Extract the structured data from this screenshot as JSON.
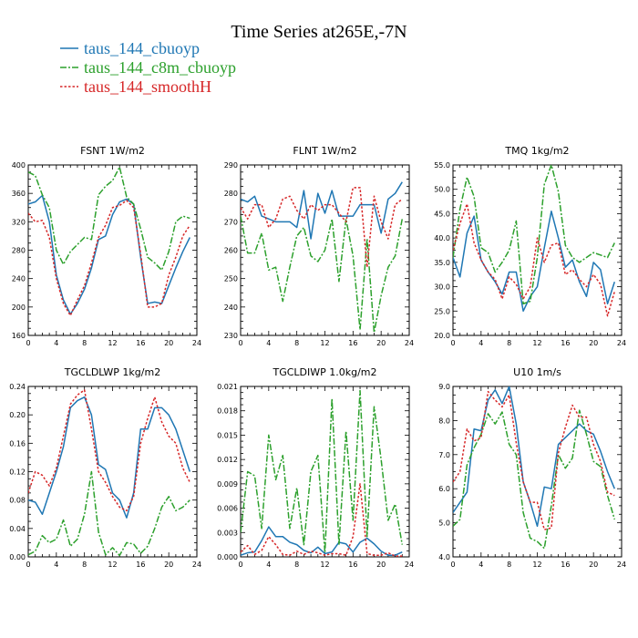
{
  "figure_title": "Time Series at265E,-7N",
  "legend": [
    {
      "label": "taus_144_cbuoyp",
      "color": "#1f77b4",
      "style": "solid"
    },
    {
      "label": "taus_144_c8m_cbuoyp",
      "color": "#2ca02c",
      "style": "dashdot"
    },
    {
      "label": "taus_144_smoothH",
      "color": "#d62728",
      "style": "dotted"
    }
  ],
  "chart_data": [
    {
      "type": "line",
      "title": "FSNT   1W/m2",
      "x": [
        0,
        1,
        2,
        3,
        4,
        5,
        6,
        7,
        8,
        9,
        10,
        11,
        12,
        13,
        14,
        15,
        16,
        17,
        18,
        19,
        20,
        21,
        22,
        23
      ],
      "xticks": [
        0,
        4,
        8,
        12,
        16,
        20,
        24
      ],
      "xlim": [
        0,
        24
      ],
      "ylim": [
        160,
        400
      ],
      "yticks": [
        160,
        200,
        240,
        280,
        320,
        360,
        400
      ],
      "yticklabels": [
        "160",
        "200",
        "240",
        "280",
        "320",
        "360",
        "400"
      ],
      "series": [
        {
          "name": "taus_144_cbuoyp",
          "values": [
            345,
            348,
            357,
            320,
            245,
            210,
            190,
            205,
            225,
            255,
            295,
            300,
            330,
            348,
            352,
            345,
            270,
            205,
            207,
            205,
            230,
            255,
            278,
            298
          ]
        },
        {
          "name": "taus_144_c8m_cbuoyp",
          "values": [
            390,
            385,
            358,
            340,
            280,
            260,
            278,
            288,
            298,
            295,
            358,
            370,
            378,
            397,
            355,
            345,
            310,
            270,
            262,
            252,
            278,
            320,
            328,
            325
          ]
        },
        {
          "name": "taus_144_smoothH",
          "values": [
            332,
            320,
            322,
            298,
            240,
            205,
            188,
            210,
            230,
            262,
            298,
            315,
            340,
            343,
            350,
            340,
            275,
            200,
            200,
            205,
            245,
            270,
            300,
            315
          ]
        }
      ]
    },
    {
      "type": "line",
      "title": "FLNT   1W/m2",
      "x": [
        0,
        1,
        2,
        3,
        4,
        5,
        6,
        7,
        8,
        9,
        10,
        11,
        12,
        13,
        14,
        15,
        16,
        17,
        18,
        19,
        20,
        21,
        22,
        23
      ],
      "xticks": [
        0,
        4,
        8,
        12,
        16,
        20,
        24
      ],
      "xlim": [
        0,
        24
      ],
      "ylim": [
        230,
        290
      ],
      "yticks": [
        230,
        240,
        250,
        260,
        270,
        280,
        290
      ],
      "yticklabels": [
        "230",
        "240",
        "250",
        "260",
        "270",
        "280",
        "290"
      ],
      "series": [
        {
          "name": "taus_144_cbuoyp",
          "values": [
            278,
            277,
            279,
            272,
            271,
            270,
            270,
            270,
            268,
            281,
            264,
            280,
            273,
            281,
            272,
            272,
            272,
            276,
            276,
            276,
            266,
            278,
            280,
            284
          ]
        },
        {
          "name": "taus_144_c8m_cbuoyp",
          "values": [
            272,
            259,
            259,
            266,
            253,
            254,
            242,
            254,
            265,
            268,
            258,
            256,
            260,
            271,
            249,
            271,
            258,
            232,
            264,
            231,
            244,
            254,
            258,
            271
          ]
        },
        {
          "name": "taus_144_smoothH",
          "values": [
            275,
            271,
            276,
            276,
            268,
            271,
            278,
            279,
            274,
            271,
            276,
            274,
            276,
            276,
            273,
            270,
            282,
            282,
            254,
            279,
            270,
            264,
            276,
            278
          ]
        }
      ]
    },
    {
      "type": "line",
      "title": "TMQ   1kg/m2",
      "x": [
        0,
        1,
        2,
        3,
        4,
        5,
        6,
        7,
        8,
        9,
        10,
        11,
        12,
        13,
        14,
        15,
        16,
        17,
        18,
        19,
        20,
        21,
        22,
        23
      ],
      "xticks": [
        0,
        4,
        8,
        12,
        16,
        20,
        24
      ],
      "xlim": [
        0,
        24
      ],
      "ylim": [
        20,
        55
      ],
      "yticks": [
        20,
        25,
        30,
        35,
        40,
        45,
        50,
        55
      ],
      "yticklabels": [
        "20.0",
        "25.0",
        "30.0",
        "35.0",
        "40.0",
        "45.0",
        "50.0",
        "55.0"
      ],
      "series": [
        {
          "name": "taus_144_cbuoyp",
          "values": [
            36,
            32,
            41,
            44.5,
            35.5,
            33,
            31,
            28.5,
            33,
            33,
            25,
            28,
            30,
            38,
            45.5,
            40,
            34,
            35.5,
            31,
            28,
            35,
            33.5,
            26.5,
            31
          ]
        },
        {
          "name": "taus_144_c8m_cbuoyp",
          "values": [
            36,
            46,
            52.5,
            48.5,
            38,
            37,
            33,
            35,
            37.5,
            43.5,
            26.5,
            27,
            36,
            51,
            55,
            49.5,
            38.5,
            36,
            35,
            36,
            37,
            36.5,
            36,
            39
          ]
        },
        {
          "name": "taus_144_smoothH",
          "values": [
            37.5,
            43,
            47,
            39,
            35.5,
            33,
            31.5,
            27.5,
            32,
            30.5,
            27.5,
            30,
            40,
            35,
            38.5,
            39,
            32.5,
            33.5,
            31.5,
            30,
            32.5,
            30.5,
            24,
            29
          ]
        }
      ]
    },
    {
      "type": "line",
      "title": "TGCLDLWP   1kg/m2",
      "x": [
        0,
        1,
        2,
        3,
        4,
        5,
        6,
        7,
        8,
        9,
        10,
        11,
        12,
        13,
        14,
        15,
        16,
        17,
        18,
        19,
        20,
        21,
        22,
        23
      ],
      "xticks": [
        0,
        4,
        8,
        12,
        16,
        20,
        24
      ],
      "xlim": [
        0,
        24
      ],
      "ylim": [
        0,
        0.24
      ],
      "yticks": [
        0,
        0.04,
        0.08,
        0.12,
        0.16,
        0.2,
        0.24
      ],
      "yticklabels": [
        "0.00",
        "0.04",
        "0.08",
        "0.12",
        "0.16",
        "0.20",
        "0.24"
      ],
      "series": [
        {
          "name": "taus_144_cbuoyp",
          "values": [
            0.08,
            0.077,
            0.06,
            0.09,
            0.12,
            0.155,
            0.21,
            0.22,
            0.225,
            0.2,
            0.13,
            0.123,
            0.09,
            0.08,
            0.055,
            0.09,
            0.18,
            0.18,
            0.21,
            0.21,
            0.2,
            0.18,
            0.15,
            0.12
          ]
        },
        {
          "name": "taus_144_c8m_cbuoyp",
          "values": [
            0.003,
            0.008,
            0.03,
            0.02,
            0.025,
            0.052,
            0.015,
            0.025,
            0.06,
            0.12,
            0.035,
            0.003,
            0.013,
            0.002,
            0.02,
            0.018,
            0.005,
            0.015,
            0.04,
            0.07,
            0.085,
            0.065,
            0.07,
            0.08
          ]
        },
        {
          "name": "taus_144_smoothH",
          "values": [
            0.09,
            0.12,
            0.115,
            0.1,
            0.125,
            0.17,
            0.215,
            0.228,
            0.235,
            0.18,
            0.12,
            0.105,
            0.085,
            0.07,
            0.065,
            0.085,
            0.16,
            0.195,
            0.225,
            0.19,
            0.17,
            0.16,
            0.125,
            0.105
          ]
        }
      ]
    },
    {
      "type": "line",
      "title": "TGCLDIWP   1.0kg/m2",
      "x": [
        0,
        1,
        2,
        3,
        4,
        5,
        6,
        7,
        8,
        9,
        10,
        11,
        12,
        13,
        14,
        15,
        16,
        17,
        18,
        19,
        20,
        21,
        22,
        23
      ],
      "xticks": [
        0,
        4,
        8,
        12,
        16,
        20,
        24
      ],
      "xlim": [
        0,
        24
      ],
      "ylim": [
        0,
        0.021
      ],
      "yticks": [
        0,
        0.003,
        0.006,
        0.009,
        0.012,
        0.015,
        0.018,
        0.021
      ],
      "yticklabels": [
        "0.000",
        "0.003",
        "0.006",
        "0.009",
        "0.012",
        "0.015",
        "0.018",
        "0.021"
      ],
      "series": [
        {
          "name": "taus_144_cbuoyp",
          "values": [
            0.0002,
            0.0005,
            0.0006,
            0.002,
            0.0037,
            0.0025,
            0.0025,
            0.0018,
            0.0015,
            0.0008,
            0.0005,
            0.0012,
            0.0004,
            0.0006,
            0.0018,
            0.0016,
            0.0006,
            0.0018,
            0.0023,
            0.0016,
            0.0007,
            0.0002,
            0.0002,
            0.0006
          ]
        },
        {
          "name": "taus_144_c8m_cbuoyp",
          "values": [
            0.003,
            0.0105,
            0.01,
            0.0035,
            0.015,
            0.0095,
            0.0125,
            0.0035,
            0.0085,
            0.0015,
            0.0105,
            0.0125,
            0.0005,
            0.0195,
            0.0015,
            0.0155,
            0.0045,
            0.0205,
            0.0025,
            0.0185,
            0.012,
            0.0045,
            0.0065,
            0.0015
          ]
        },
        {
          "name": "taus_144_smoothH",
          "values": [
            0.0006,
            0.0014,
            0.0003,
            0.0008,
            0.0025,
            0.0015,
            0.0003,
            0.0002,
            0.0007,
            0.0003,
            0.0007,
            0.0005,
            0.0002,
            0.0004,
            0.0004,
            0.0002,
            0.0025,
            0.009,
            0.0004,
            0.0002,
            0.0002,
            0.0005,
            0.0001,
            0.0001
          ]
        }
      ]
    },
    {
      "type": "line",
      "title": "U10   1m/s",
      "x": [
        0,
        1,
        2,
        3,
        4,
        5,
        6,
        7,
        8,
        9,
        10,
        11,
        12,
        13,
        14,
        15,
        16,
        17,
        18,
        19,
        20,
        21,
        22,
        23
      ],
      "xticks": [
        0,
        4,
        8,
        12,
        16,
        20,
        24
      ],
      "xlim": [
        0,
        24
      ],
      "ylim": [
        4,
        9
      ],
      "yticks": [
        4,
        5,
        6,
        7,
        8,
        9
      ],
      "yticklabels": [
        "4.0",
        "5.0",
        "6.0",
        "7.0",
        "8.0",
        "9.0"
      ],
      "series": [
        {
          "name": "taus_144_cbuoyp",
          "values": [
            5.3,
            5.6,
            5.9,
            7.75,
            7.7,
            8.6,
            8.9,
            8.5,
            9.0,
            7.9,
            6.2,
            5.6,
            4.9,
            6.05,
            6.0,
            7.3,
            7.5,
            7.7,
            7.9,
            7.7,
            7.6,
            7.1,
            6.5,
            6.0
          ]
        },
        {
          "name": "taus_144_c8m_cbuoyp",
          "values": [
            4.9,
            5.1,
            6.7,
            7.2,
            7.6,
            8.2,
            7.9,
            8.25,
            7.3,
            7.0,
            5.3,
            4.55,
            4.45,
            4.25,
            5.5,
            7.0,
            6.6,
            6.9,
            8.3,
            7.6,
            6.8,
            6.65,
            5.8,
            5.1
          ]
        },
        {
          "name": "taus_144_smoothH",
          "values": [
            6.2,
            6.5,
            7.75,
            7.4,
            7.5,
            8.85,
            8.6,
            8.4,
            8.75,
            7.35,
            6.2,
            5.6,
            5.6,
            4.8,
            4.85,
            7.05,
            7.8,
            8.45,
            8.1,
            8.1,
            7.3,
            6.8,
            5.9,
            5.8
          ]
        }
      ]
    }
  ]
}
